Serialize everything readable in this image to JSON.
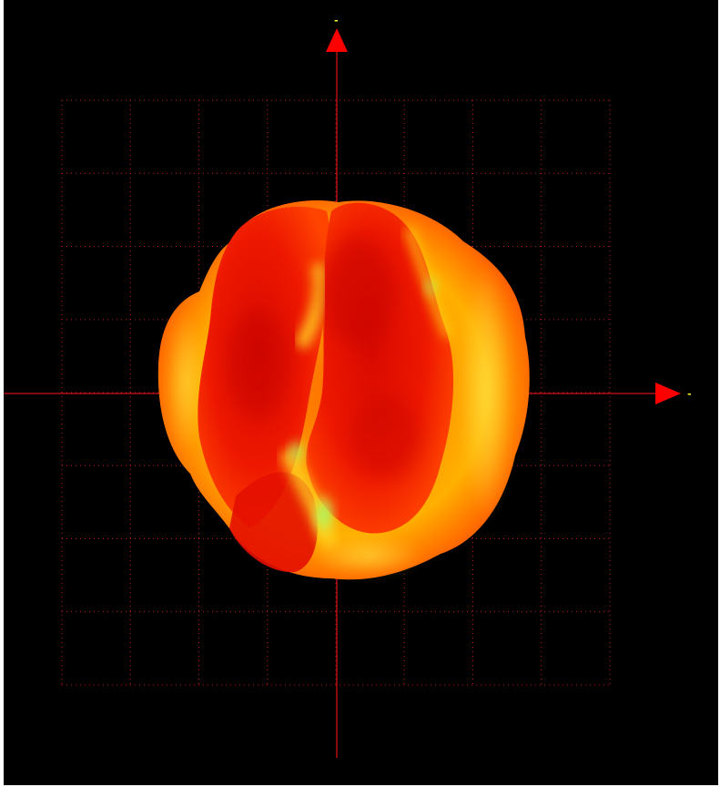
{
  "axes": {
    "x_label": "-",
    "y_label": "-"
  },
  "colors": {
    "background": "#000000",
    "axis": "#d01010",
    "arrow": "#ff0000",
    "grid": "#c01818",
    "label": "#ffff30",
    "surface_low": "#cc0000",
    "surface_mid": "#ff3300",
    "surface_high": "#ffcc00",
    "surface_peak": "#40ff80"
  },
  "grid": {
    "columns": 8,
    "rows": 8,
    "style": "dotted"
  },
  "surface": {
    "type": "3d radiation pattern",
    "colormap": "red-yellow-green"
  }
}
